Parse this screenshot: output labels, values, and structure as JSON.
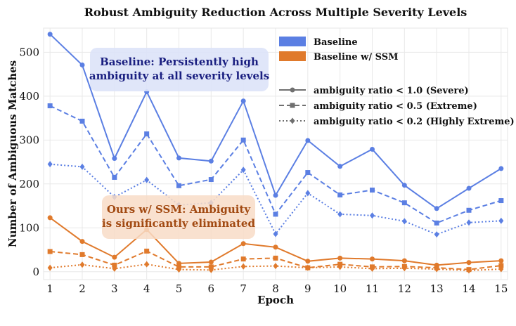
{
  "chart_data": {
    "type": "line",
    "title": "Robust Ambiguity Reduction Across Multiple Severity Levels",
    "xlabel": "Epoch",
    "ylabel": "Number of Ambiguous Matches",
    "x": [
      1,
      2,
      3,
      4,
      5,
      6,
      7,
      8,
      9,
      10,
      11,
      12,
      13,
      14,
      15
    ],
    "xlim": [
      0.8,
      15.2
    ],
    "ylim": [
      -18,
      555
    ],
    "yticks": [
      0,
      100,
      200,
      300,
      400,
      500
    ],
    "grid": true,
    "legend": {
      "placement": "top-right",
      "groups": [
        {
          "label": "Baseline",
          "color": "#5b7fe3"
        },
        {
          "label": "Baseline w/ SSM",
          "color": "#e07a2c"
        }
      ],
      "styles": [
        {
          "label": "ambiguity ratio < 1.0 (Severe)",
          "linestyle": "solid",
          "marker": "circle"
        },
        {
          "label": "ambiguity ratio < 0.5 (Extreme)",
          "linestyle": "dashed",
          "marker": "square"
        },
        {
          "label": "ambiguity ratio < 0.2 (Highly Extreme)",
          "linestyle": "dotted",
          "marker": "diamond"
        }
      ]
    },
    "series": [
      {
        "group": "Baseline",
        "style": "solid",
        "color": "#5b7fe3",
        "values": [
          541,
          471,
          258,
          410,
          259,
          252,
          389,
          174,
          299,
          240,
          279,
          197,
          144,
          190,
          235
        ]
      },
      {
        "group": "Baseline",
        "style": "dashed",
        "color": "#5b7fe3",
        "values": [
          378,
          343,
          215,
          314,
          196,
          210,
          300,
          131,
          226,
          175,
          186,
          157,
          111,
          140,
          162
        ]
      },
      {
        "group": "Baseline",
        "style": "dotted",
        "color": "#5b7fe3",
        "values": [
          245,
          239,
          170,
          209,
          152,
          157,
          232,
          86,
          179,
          131,
          128,
          115,
          85,
          112,
          116
        ]
      },
      {
        "group": "Baseline w/ SSM",
        "style": "solid",
        "color": "#e07a2c",
        "values": [
          123,
          69,
          33,
          96,
          19,
          22,
          64,
          56,
          24,
          31,
          29,
          25,
          15,
          21,
          25
        ]
      },
      {
        "group": "Baseline w/ SSM",
        "style": "dashed",
        "color": "#e07a2c",
        "values": [
          46,
          39,
          15,
          47,
          11,
          11,
          29,
          31,
          9,
          17,
          11,
          12,
          9,
          5,
          14
        ]
      },
      {
        "group": "Baseline w/ SSM",
        "style": "dotted",
        "color": "#e07a2c",
        "values": [
          9,
          16,
          7,
          17,
          5,
          4,
          12,
          13,
          9,
          11,
          7,
          8,
          6,
          3,
          6
        ]
      }
    ],
    "annotations": [
      {
        "line1": "Baseline: Persistently high",
        "line2": "ambiguity at all severity levels",
        "bg": "#dde3f8",
        "color": "#1a1f80"
      },
      {
        "line1": "Ours w/ SSM: Ambiguity",
        "line2": "is significantly eliminated",
        "bg": "#f8dcc7",
        "color": "#a24a12"
      }
    ]
  }
}
